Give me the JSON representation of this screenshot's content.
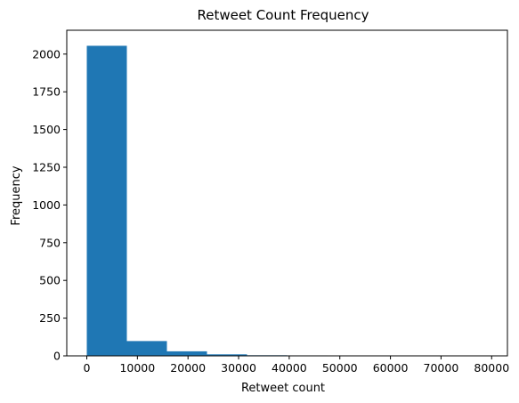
{
  "chart_data": {
    "type": "bar",
    "title": "Retweet Count Frequency",
    "xlabel": "Retweet count",
    "ylabel": "Frequency",
    "bar_color": "#1f77b4",
    "bins": [
      {
        "x0": 0,
        "x1": 7916,
        "count": 2055
      },
      {
        "x0": 7916,
        "x1": 15832,
        "count": 98
      },
      {
        "x0": 15832,
        "x1": 23748,
        "count": 30
      },
      {
        "x0": 23748,
        "x1": 31664,
        "count": 10
      },
      {
        "x0": 31664,
        "x1": 39580,
        "count": 4
      },
      {
        "x0": 39580,
        "x1": 47496,
        "count": 3
      },
      {
        "x0": 47496,
        "x1": 55412,
        "count": 2
      },
      {
        "x0": 55412,
        "x1": 63328,
        "count": 0
      },
      {
        "x0": 63328,
        "x1": 71244,
        "count": 0
      },
      {
        "x0": 71244,
        "x1": 79160,
        "count": 1
      }
    ],
    "xlim": [
      -3958,
      83118
    ],
    "ylim": [
      0,
      2158
    ],
    "xticks": [
      0,
      10000,
      20000,
      30000,
      40000,
      50000,
      60000,
      70000,
      80000
    ],
    "yticks": [
      0,
      250,
      500,
      750,
      1000,
      1250,
      1500,
      1750,
      2000
    ],
    "grid": false
  }
}
